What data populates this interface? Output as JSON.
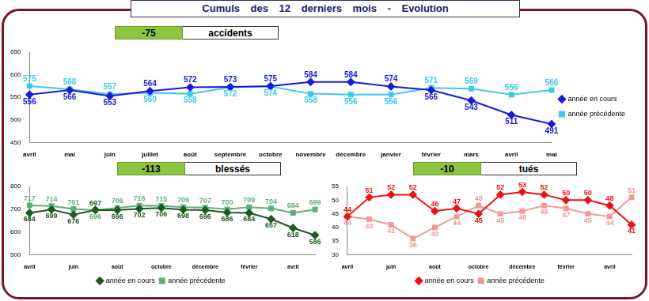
{
  "header": "Cumuls des 12 derniers mois - Evolution",
  "chart_data": [
    {
      "type": "line",
      "title": "accidents",
      "change": -75,
      "categories": [
        "avril",
        "mai",
        "juin",
        "juillet",
        "août",
        "septembre",
        "octobre",
        "novembre",
        "décembre",
        "janvier",
        "février",
        "mars",
        "avril",
        "mai"
      ],
      "series": [
        {
          "name": "année en cours",
          "color": "#1a1adb",
          "marker": "diamond",
          "values": [
            556,
            566,
            553,
            564,
            572,
            573,
            575,
            584,
            584,
            574,
            566,
            543,
            511,
            491
          ]
        },
        {
          "name": "année précédente",
          "color": "#3fc8ec",
          "marker": "square",
          "values": [
            575,
            568,
            557,
            560,
            558,
            572,
            574,
            558,
            556,
            556,
            571,
            569,
            556,
            566
          ]
        }
      ],
      "ylim": [
        450,
        650
      ],
      "yticks": [
        450,
        500,
        550,
        600,
        650
      ],
      "grid": false,
      "legend": "right",
      "data_labels": true
    },
    {
      "type": "line",
      "title": "blessés",
      "change": -113,
      "categories": [
        "avril",
        null,
        "juin",
        null,
        "août",
        null,
        "octobre",
        null,
        "décembre",
        null,
        "février",
        null,
        "avril",
        null
      ],
      "series": [
        {
          "name": "année en cours",
          "color": "#1f5a1f",
          "marker": "diamond",
          "values": [
            684,
            699,
            676,
            697,
            696,
            702,
            706,
            698,
            696,
            686,
            684,
            657,
            618,
            586
          ]
        },
        {
          "name": "année précédente",
          "color": "#5fae7a",
          "marker": "square",
          "values": [
            717,
            714,
            701,
            696,
            706,
            716,
            715,
            709,
            707,
            700,
            709,
            704,
            684,
            699
          ]
        }
      ],
      "ylim": [
        500,
        800
      ],
      "yticks": [
        500,
        600,
        700,
        800
      ],
      "grid": false,
      "legend": "bottom",
      "data_labels": true
    },
    {
      "type": "line",
      "title": "tués",
      "change": -10,
      "categories": [
        "avril",
        null,
        "juin",
        null,
        "août",
        null,
        "octobre",
        null,
        "décembre",
        null,
        "février",
        null,
        "avril",
        null
      ],
      "series": [
        {
          "name": "année en cours",
          "color": "#ee1111",
          "marker": "diamond",
          "values": [
            44,
            51,
            52,
            52,
            46,
            47,
            45,
            52,
            53,
            52,
            50,
            50,
            48,
            41
          ]
        },
        {
          "name": "année précédente",
          "color": "#f09a9a",
          "marker": "square",
          "values": [
            44,
            43,
            41,
            36,
            40,
            44,
            48,
            45,
            46,
            48,
            47,
            45,
            44,
            51
          ]
        }
      ],
      "ylim": [
        30,
        55
      ],
      "yticks": [
        30,
        35,
        40,
        45,
        50,
        55
      ],
      "grid": false,
      "legend": "bottom",
      "data_labels": true
    }
  ]
}
